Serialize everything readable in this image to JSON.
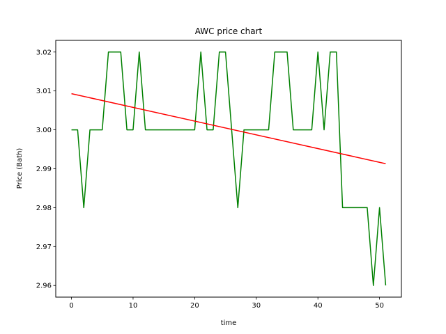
{
  "chart_data": {
    "type": "line",
    "title": "AWC price chart",
    "xlabel": "time",
    "ylabel": "Price (Bath)",
    "xlim": [
      -2.55,
      53.55
    ],
    "ylim": [
      2.957,
      3.023
    ],
    "xticks": [
      0,
      10,
      20,
      30,
      40,
      50
    ],
    "yticks": [
      2.96,
      2.97,
      2.98,
      2.99,
      3.0,
      3.01,
      3.02
    ],
    "ytick_labels": [
      "2.96",
      "2.97",
      "2.98",
      "2.99",
      "3.00",
      "3.01",
      "3.02"
    ],
    "grid": false,
    "series": [
      {
        "color": "#008000",
        "x": [
          0,
          1,
          2,
          3,
          4,
          5,
          6,
          7,
          8,
          9,
          10,
          11,
          12,
          13,
          14,
          15,
          16,
          17,
          18,
          19,
          20,
          21,
          22,
          23,
          24,
          25,
          26,
          27,
          28,
          29,
          30,
          31,
          32,
          33,
          34,
          35,
          36,
          37,
          38,
          39,
          40,
          41,
          42,
          43,
          44,
          45,
          46,
          47,
          48,
          49,
          50,
          51
        ],
        "y": [
          3.0,
          3.0,
          2.98,
          3.0,
          3.0,
          3.0,
          3.02,
          3.02,
          3.02,
          3.0,
          3.0,
          3.02,
          3.0,
          3.0,
          3.0,
          3.0,
          3.0,
          3.0,
          3.0,
          3.0,
          3.0,
          3.02,
          3.0,
          3.0,
          3.02,
          3.02,
          3.0,
          2.98,
          3.0,
          3.0,
          3.0,
          3.0,
          3.0,
          3.02,
          3.02,
          3.02,
          3.0,
          3.0,
          3.0,
          3.0,
          3.02,
          3.0,
          3.02,
          3.02,
          2.98,
          2.98,
          2.98,
          2.98,
          2.98,
          2.96,
          2.98,
          2.96
        ]
      },
      {
        "color": "#ff0000",
        "x": [
          0,
          51
        ],
        "y": [
          3.0093,
          2.9913
        ]
      }
    ]
  }
}
